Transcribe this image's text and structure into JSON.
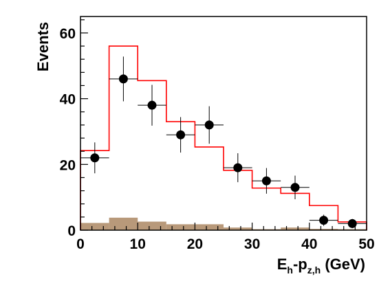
{
  "chart_data": {
    "type": "histogram",
    "title": "",
    "ylabel": "Events",
    "xlabel": {
      "main": "E",
      "sub1": "h",
      "mid": "-p",
      "sub2": "z,h",
      "unit": " (GeV)"
    },
    "xlim": [
      0,
      50
    ],
    "ylim": [
      0,
      65
    ],
    "x_ticks": [
      0,
      10,
      20,
      30,
      40,
      50
    ],
    "y_ticks": [
      0,
      20,
      40,
      60
    ],
    "bin_edges": [
      0,
      5,
      10,
      15,
      20,
      25,
      30,
      35,
      40,
      45,
      50
    ],
    "series": [
      {
        "kind": "data-points",
        "color": "#000000",
        "x": [
          2.5,
          7.5,
          12.5,
          17.5,
          22.5,
          27.5,
          32.5,
          37.5,
          42.5,
          47.5
        ],
        "y": [
          22,
          46,
          38,
          29,
          32,
          19,
          15,
          13,
          3,
          2
        ],
        "y_err": [
          4.7,
          6.8,
          6.2,
          5.4,
          5.7,
          4.4,
          3.9,
          3.6,
          1.7,
          1.4
        ],
        "x_err": 2.5
      },
      {
        "kind": "step",
        "color": "#ff0000",
        "values": [
          24.2,
          56,
          45.5,
          33,
          25.3,
          18.2,
          12.8,
          11.2,
          7.5,
          2.5
        ]
      },
      {
        "kind": "filled-step",
        "color": "#b8997a",
        "values": [
          2.2,
          3.8,
          2.6,
          1.8,
          1.8,
          0.8,
          0.3,
          0.8,
          0.4,
          0.3
        ]
      }
    ]
  }
}
